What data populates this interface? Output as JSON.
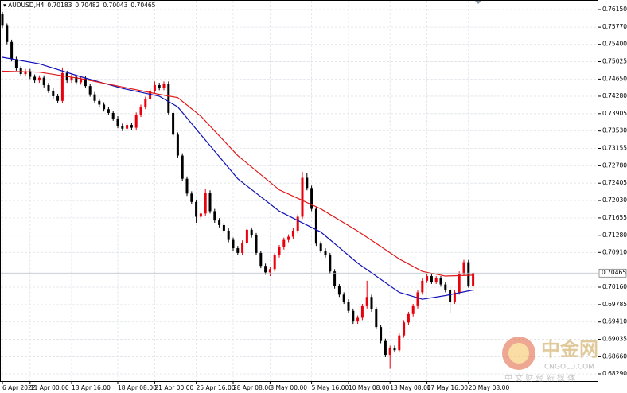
{
  "chart_data": {
    "type": "candlestick",
    "title": "AUDUSD,H4",
    "categories": [
      "6 Apr 2022",
      null,
      null,
      null,
      null,
      null,
      "11 Apr 00:00",
      null,
      null,
      null,
      null,
      null,
      null,
      null,
      null,
      "13 Apr 16:00",
      null,
      null,
      null,
      null,
      null,
      null,
      null,
      null,
      null,
      "18 Apr 08:00",
      null,
      null,
      null,
      null,
      null,
      null,
      null,
      "21 Apr 00:00",
      null,
      null,
      null,
      null,
      null,
      null,
      null,
      null,
      "25 Apr 16:00",
      null,
      null,
      null,
      null,
      null,
      null,
      null,
      "28 Apr 08:00",
      null,
      null,
      null,
      null,
      null,
      null,
      null,
      "3 May 00:00",
      null,
      null,
      null,
      null,
      null,
      null,
      null,
      null,
      "5 May 16:00",
      null,
      null,
      null,
      null,
      null,
      null,
      null,
      "10 May 08:00",
      null,
      null,
      null,
      null,
      null,
      null,
      null,
      null,
      "13 May 08:00",
      null,
      null,
      null,
      null,
      null,
      null,
      null,
      "17 May 16:00",
      null,
      null,
      null,
      null,
      null,
      null,
      null,
      null,
      "20 May 08:00",
      null
    ],
    "open": [
      0.7605,
      0.758,
      0.7545,
      0.7508,
      0.7488,
      0.7476,
      0.7482,
      0.747,
      0.7462,
      0.7468,
      0.7452,
      0.744,
      0.7428,
      0.7418,
      0.7478,
      0.7462,
      0.747,
      0.7458,
      0.7466,
      0.745,
      0.7432,
      0.7418,
      0.741,
      0.74,
      0.7392,
      0.738,
      0.7364,
      0.7358,
      0.7366,
      0.736,
      0.7388,
      0.7405,
      0.7422,
      0.744,
      0.7452,
      0.7446,
      0.7455,
      0.7392,
      0.7345,
      0.73,
      0.725,
      0.7218,
      0.72,
      0.7168,
      0.7175,
      0.722,
      0.718,
      0.716,
      0.715,
      0.7138,
      0.7118,
      0.71,
      0.709,
      0.7112,
      0.714,
      0.7128,
      0.709,
      0.7062,
      0.7048,
      0.7055,
      0.7085,
      0.7102,
      0.7118,
      0.7125,
      0.7138,
      0.7168,
      0.7252,
      0.723,
      0.7185,
      0.711,
      0.7095,
      0.7085,
      0.705,
      0.7018,
      0.7,
      0.6985,
      0.6965,
      0.6942,
      0.695,
      0.6975,
      0.6995,
      0.6968,
      0.693,
      0.69,
      0.687,
      0.6885,
      0.688,
      0.6912,
      0.694,
      0.6958,
      0.6975,
      0.7005,
      0.703,
      0.704,
      0.7028,
      0.7035,
      0.7022,
      0.701,
      0.6985,
      0.7005,
      0.7045,
      0.707,
      0.70183
    ],
    "high": [
      0.761,
      0.7585,
      0.755,
      0.7513,
      0.7493,
      0.7487,
      0.7487,
      0.7475,
      0.7473,
      0.7473,
      0.7457,
      0.7445,
      0.7433,
      0.749,
      0.7483,
      0.7475,
      0.7475,
      0.7471,
      0.7471,
      0.7455,
      0.7437,
      0.7423,
      0.7415,
      0.7405,
      0.7397,
      0.7385,
      0.7369,
      0.7371,
      0.7371,
      0.7393,
      0.741,
      0.7427,
      0.7445,
      0.746,
      0.7457,
      0.746,
      0.746,
      0.7397,
      0.735,
      0.7305,
      0.7255,
      0.7223,
      0.7205,
      0.718,
      0.7228,
      0.7225,
      0.7185,
      0.7165,
      0.7155,
      0.7143,
      0.7123,
      0.7105,
      0.7117,
      0.7145,
      0.7145,
      0.7133,
      0.7095,
      0.7067,
      0.706,
      0.709,
      0.7107,
      0.7123,
      0.713,
      0.7143,
      0.7173,
      0.7265,
      0.7262,
      0.7235,
      0.719,
      0.7115,
      0.71,
      0.709,
      0.7055,
      0.7023,
      0.7005,
      0.699,
      0.697,
      0.6955,
      0.698,
      0.703,
      0.7,
      0.6973,
      0.6935,
      0.6905,
      0.689,
      0.689,
      0.6917,
      0.6945,
      0.6963,
      0.698,
      0.701,
      0.7035,
      0.7045,
      0.7045,
      0.704,
      0.704,
      0.7027,
      0.7015,
      0.701,
      0.705,
      0.7075,
      0.7075,
      0.70482
    ],
    "low": [
      0.7575,
      0.754,
      0.7503,
      0.7483,
      0.7471,
      0.7471,
      0.7465,
      0.7457,
      0.7457,
      0.7447,
      0.7435,
      0.7423,
      0.7413,
      0.7413,
      0.7457,
      0.7457,
      0.7453,
      0.7453,
      0.7445,
      0.7427,
      0.7413,
      0.7405,
      0.7395,
      0.7387,
      0.7375,
      0.7359,
      0.7353,
      0.7353,
      0.7355,
      0.7355,
      0.7383,
      0.74,
      0.7417,
      0.7435,
      0.7441,
      0.7441,
      0.7387,
      0.734,
      0.7295,
      0.7245,
      0.7213,
      0.7195,
      0.7155,
      0.7163,
      0.717,
      0.7175,
      0.7155,
      0.7145,
      0.7133,
      0.7113,
      0.7095,
      0.7085,
      0.7085,
      0.7107,
      0.7123,
      0.7085,
      0.7057,
      0.7043,
      0.704,
      0.705,
      0.708,
      0.7097,
      0.7113,
      0.712,
      0.7133,
      0.7163,
      0.7225,
      0.718,
      0.7105,
      0.709,
      0.708,
      0.7045,
      0.7013,
      0.6995,
      0.698,
      0.696,
      0.6937,
      0.6937,
      0.6945,
      0.697,
      0.6963,
      0.6925,
      0.6895,
      0.6865,
      0.684,
      0.6875,
      0.6875,
      0.6907,
      0.6935,
      0.6953,
      0.697,
      0.7,
      0.7025,
      0.7023,
      0.7023,
      0.7017,
      0.7005,
      0.696,
      0.698,
      0.7,
      0.704,
      0.7015,
      0.70043
    ],
    "close": [
      0.758,
      0.7545,
      0.7508,
      0.7488,
      0.7476,
      0.7482,
      0.747,
      0.7462,
      0.7468,
      0.7452,
      0.744,
      0.7428,
      0.7418,
      0.7478,
      0.7462,
      0.747,
      0.7458,
      0.7466,
      0.745,
      0.7432,
      0.7418,
      0.741,
      0.74,
      0.7392,
      0.738,
      0.7364,
      0.7358,
      0.7366,
      0.736,
      0.7388,
      0.7405,
      0.7422,
      0.744,
      0.7452,
      0.7446,
      0.7455,
      0.7392,
      0.7345,
      0.73,
      0.725,
      0.7218,
      0.72,
      0.7168,
      0.7175,
      0.722,
      0.718,
      0.716,
      0.715,
      0.7138,
      0.7118,
      0.71,
      0.709,
      0.7112,
      0.714,
      0.7128,
      0.709,
      0.7062,
      0.7048,
      0.7055,
      0.7085,
      0.7102,
      0.7118,
      0.7125,
      0.7138,
      0.7168,
      0.7252,
      0.723,
      0.7185,
      0.711,
      0.7095,
      0.7085,
      0.705,
      0.7018,
      0.7,
      0.6985,
      0.6965,
      0.6942,
      0.695,
      0.6975,
      0.6995,
      0.6968,
      0.693,
      0.69,
      0.687,
      0.6885,
      0.688,
      0.6912,
      0.694,
      0.6958,
      0.6975,
      0.7005,
      0.703,
      0.704,
      0.7028,
      0.7035,
      0.7022,
      0.701,
      0.6985,
      0.7005,
      0.7045,
      0.707,
      0.70183,
      0.70465
    ],
    "up_color": "#e8000b",
    "down_color": "#000000",
    "lines": [
      {
        "color": "#1010b8",
        "x": [
          0,
          8,
          17,
          26,
          34,
          38,
          43,
          51,
          60,
          69,
          77,
          86,
          91,
          96,
          102
        ],
        "values": [
          0.7512,
          0.7498,
          0.747,
          0.7445,
          0.7428,
          0.7405,
          0.7345,
          0.725,
          0.718,
          0.7135,
          0.7068,
          0.7005,
          0.699,
          0.6998,
          0.701
        ]
      },
      {
        "color": "#e01818",
        "x": [
          0,
          8,
          17,
          26,
          34,
          38,
          43,
          51,
          60,
          69,
          77,
          86,
          91,
          96,
          102
        ],
        "values": [
          0.7482,
          0.748,
          0.7466,
          0.7448,
          0.7432,
          0.7425,
          0.7385,
          0.73,
          0.7226,
          0.7185,
          0.7137,
          0.7077,
          0.705,
          0.704,
          0.7042
        ]
      }
    ],
    "ylim": [
      0.68118,
      0.76356
    ],
    "yticks": [
      {
        "value": 0.7615,
        "label": "0.76150"
      },
      {
        "value": 0.7577,
        "label": "0.75770"
      },
      {
        "value": 0.754,
        "label": "0.75400"
      },
      {
        "value": 0.75025,
        "label": "0.75025"
      },
      {
        "value": 0.7465,
        "label": "0.74650"
      },
      {
        "value": 0.7428,
        "label": "0.74280"
      },
      {
        "value": 0.73905,
        "label": "0.73905"
      },
      {
        "value": 0.7353,
        "label": "0.73530"
      },
      {
        "value": 0.73155,
        "label": "0.73155"
      },
      {
        "value": 0.7278,
        "label": "0.72780"
      },
      {
        "value": 0.72405,
        "label": "0.72405"
      },
      {
        "value": 0.7203,
        "label": "0.72030"
      },
      {
        "value": 0.71655,
        "label": "0.71655"
      },
      {
        "value": 0.7128,
        "label": "0.71280"
      },
      {
        "value": 0.7091,
        "label": "0.70910"
      },
      {
        "value": 0.7016,
        "label": "0.70160"
      },
      {
        "value": 0.69785,
        "label": "0.69785"
      },
      {
        "value": 0.6941,
        "label": "0.69410"
      },
      {
        "value": 0.69035,
        "label": "0.69035"
      },
      {
        "value": 0.6866,
        "label": "0.68660"
      },
      {
        "value": 0.6829,
        "label": "0.68290"
      }
    ],
    "grid": true
  },
  "watermark": {
    "brand": "中金网",
    "site": "CNGOLD.COM",
    "slogan": "中 文 财 经 新 媒 体"
  }
}
